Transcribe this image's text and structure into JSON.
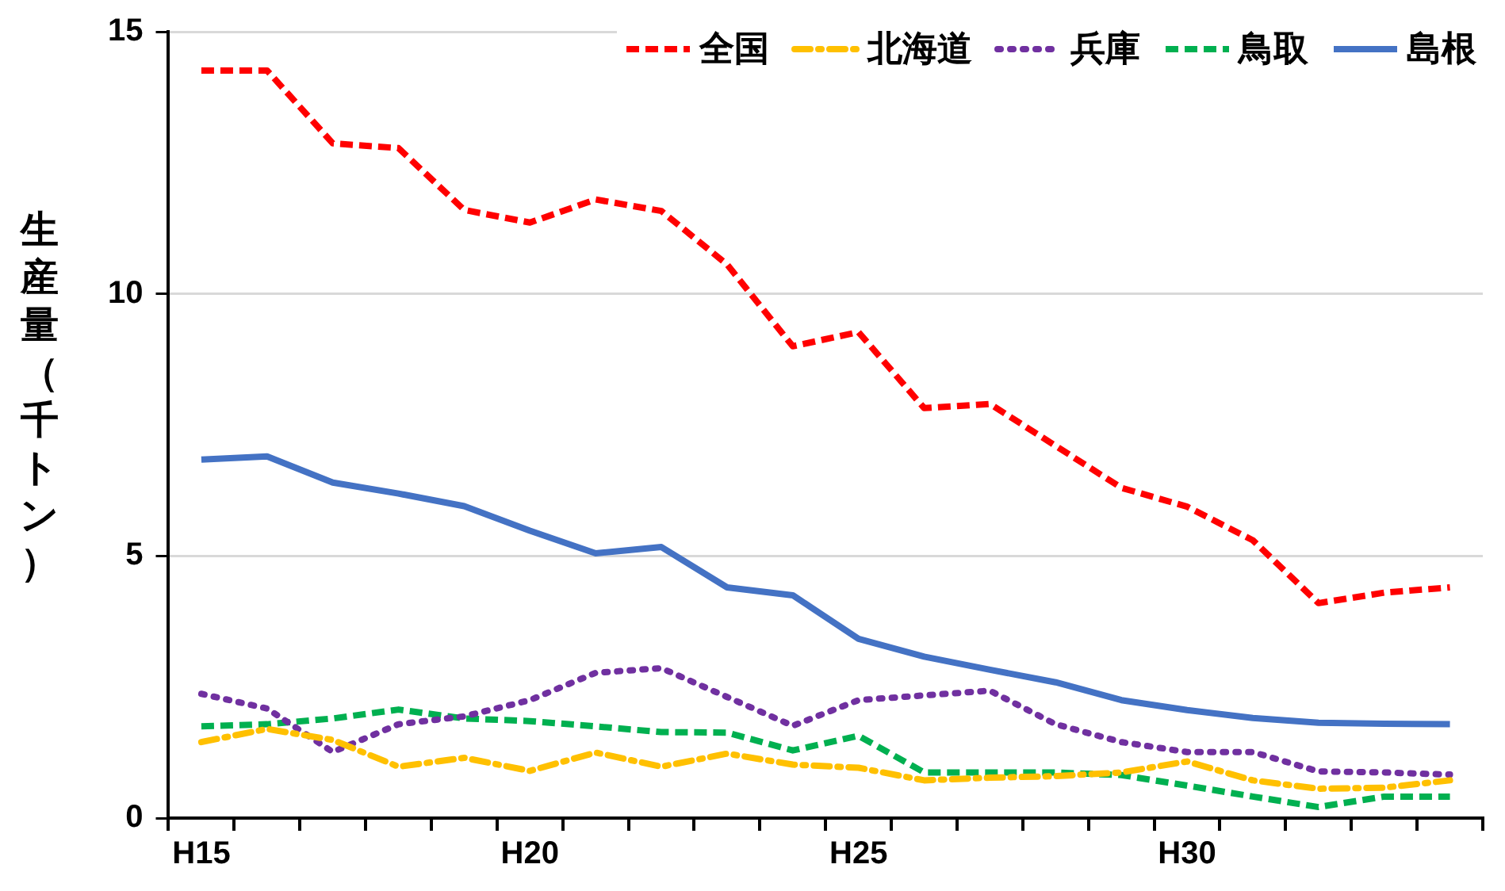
{
  "chart_data": {
    "type": "line",
    "ylabel": "生産量（千トン）",
    "categories": [
      "H15",
      null,
      null,
      null,
      null,
      "H20",
      null,
      null,
      null,
      null,
      "H25",
      null,
      null,
      null,
      null,
      "H30",
      null,
      null,
      null,
      null
    ],
    "ylim": [
      0,
      15
    ],
    "yticks": [
      0,
      5,
      10,
      15
    ],
    "grid": "y",
    "legend": "top right",
    "marker": "none",
    "series": [
      {
        "name": "全国",
        "color": "#ff0000",
        "line_style": "dashed",
        "values": [
          14.26,
          14.26,
          12.87,
          12.78,
          11.6,
          11.36,
          11.8,
          11.58,
          10.56,
          9.0,
          9.27,
          7.82,
          7.9,
          7.1,
          6.3,
          5.94,
          5.3,
          4.1,
          4.3,
          4.4
        ]
      },
      {
        "name": "北海道",
        "color": "#ffc000",
        "line_style": "dashdot",
        "values": [
          1.45,
          1.7,
          1.49,
          0.98,
          1.15,
          0.9,
          1.25,
          0.98,
          1.23,
          1.02,
          0.96,
          0.72,
          0.77,
          0.8,
          0.87,
          1.08,
          0.72,
          0.56,
          0.58,
          0.72
        ]
      },
      {
        "name": "兵庫",
        "color": "#7030a0",
        "line_style": "dotted",
        "values": [
          2.37,
          2.09,
          1.26,
          1.79,
          1.94,
          2.25,
          2.77,
          2.86,
          2.31,
          1.76,
          2.25,
          2.34,
          2.43,
          1.79,
          1.45,
          1.26,
          1.26,
          0.89,
          0.87,
          0.83
        ]
      },
      {
        "name": "鳥取",
        "color": "#00b050",
        "line_style": "dashed",
        "values": [
          1.75,
          1.79,
          1.9,
          2.07,
          1.9,
          1.85,
          1.75,
          1.64,
          1.63,
          1.29,
          1.57,
          0.87,
          0.87,
          0.87,
          0.82,
          0.62,
          0.41,
          0.21,
          0.41,
          0.41
        ]
      },
      {
        "name": "島根",
        "color": "#4472c4",
        "line_style": "solid",
        "values": [
          6.84,
          6.9,
          6.4,
          6.19,
          5.95,
          5.48,
          5.05,
          5.17,
          4.4,
          4.25,
          3.42,
          3.08,
          2.83,
          2.59,
          2.25,
          2.06,
          1.91,
          1.82,
          1.8,
          1.79
        ]
      }
    ]
  }
}
